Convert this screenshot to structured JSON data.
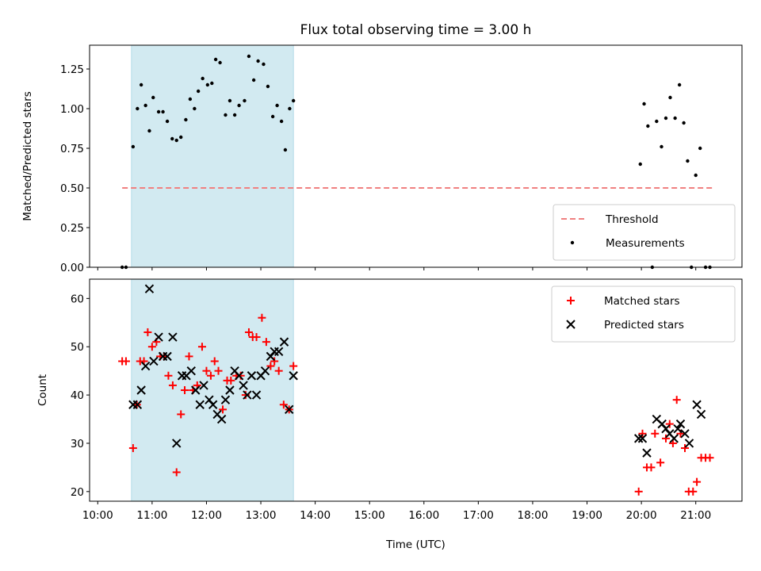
{
  "chart_data": {
    "title": "Flux total observing time = 3.00 h",
    "xlabel": "Time (UTC)",
    "x_unit": "hours UTC",
    "xlim": [
      9.85,
      21.85
    ],
    "x_ticks": [
      {
        "value": 10,
        "label": "10:00"
      },
      {
        "value": 11,
        "label": "11:00"
      },
      {
        "value": 12,
        "label": "12:00"
      },
      {
        "value": 13,
        "label": "13:00"
      },
      {
        "value": 14,
        "label": "14:00"
      },
      {
        "value": 15,
        "label": "15:00"
      },
      {
        "value": 16,
        "label": "16:00"
      },
      {
        "value": 17,
        "label": "17:00"
      },
      {
        "value": 18,
        "label": "18:00"
      },
      {
        "value": 19,
        "label": "19:00"
      },
      {
        "value": 20,
        "label": "20:00"
      },
      {
        "value": 21,
        "label": "21:00"
      }
    ],
    "shaded_span": {
      "x_start": 10.62,
      "x_end": 13.6,
      "color": "#add8e6"
    },
    "panels": [
      {
        "id": "ratio",
        "type": "scatter",
        "ylabel": "Matched/Predicted stars",
        "ylim": [
          0,
          1.4
        ],
        "y_ticks": [
          {
            "value": 0,
            "label": "0.00"
          },
          {
            "value": 0.25,
            "label": "0.25"
          },
          {
            "value": 0.5,
            "label": "0.50"
          },
          {
            "value": 0.75,
            "label": "0.75"
          },
          {
            "value": 1.0,
            "label": "1.00"
          },
          {
            "value": 1.25,
            "label": "1.25"
          }
        ],
        "legend_position": "lower-right",
        "threshold": {
          "name": "Threshold",
          "y": 0.5,
          "x_start": 10.45,
          "x_end": 21.3,
          "color": "#f08080"
        },
        "series": [
          {
            "name": "Measurements",
            "marker": "dot",
            "color": "#000000",
            "points": [
              [
                10.45,
                0.0
              ],
              [
                10.52,
                0.0
              ],
              [
                10.65,
                0.76
              ],
              [
                10.73,
                1.0
              ],
              [
                10.8,
                1.15
              ],
              [
                10.88,
                1.02
              ],
              [
                10.95,
                0.86
              ],
              [
                11.02,
                1.07
              ],
              [
                11.12,
                0.98
              ],
              [
                11.2,
                0.98
              ],
              [
                11.28,
                0.92
              ],
              [
                11.37,
                0.81
              ],
              [
                11.45,
                0.8
              ],
              [
                11.53,
                0.82
              ],
              [
                11.62,
                0.93
              ],
              [
                11.7,
                1.06
              ],
              [
                11.78,
                1.0
              ],
              [
                11.85,
                1.11
              ],
              [
                11.93,
                1.19
              ],
              [
                12.02,
                1.15
              ],
              [
                12.1,
                1.16
              ],
              [
                12.17,
                1.31
              ],
              [
                12.25,
                1.29
              ],
              [
                12.35,
                0.96
              ],
              [
                12.43,
                1.05
              ],
              [
                12.52,
                0.96
              ],
              [
                12.6,
                1.02
              ],
              [
                12.7,
                1.05
              ],
              [
                12.78,
                1.33
              ],
              [
                12.87,
                1.18
              ],
              [
                12.95,
                1.3
              ],
              [
                13.05,
                1.28
              ],
              [
                13.13,
                1.14
              ],
              [
                13.22,
                0.95
              ],
              [
                13.3,
                1.02
              ],
              [
                13.38,
                0.92
              ],
              [
                13.45,
                0.74
              ],
              [
                13.53,
                1.0
              ],
              [
                13.6,
                1.05
              ],
              [
                19.98,
                0.65
              ],
              [
                20.05,
                1.03
              ],
              [
                20.12,
                0.89
              ],
              [
                20.2,
                0.0
              ],
              [
                20.28,
                0.92
              ],
              [
                20.37,
                0.76
              ],
              [
                20.45,
                0.94
              ],
              [
                20.53,
                1.07
              ],
              [
                20.62,
                0.94
              ],
              [
                20.7,
                1.15
              ],
              [
                20.78,
                0.91
              ],
              [
                20.85,
                0.67
              ],
              [
                20.92,
                0.0
              ],
              [
                21.0,
                0.58
              ],
              [
                21.08,
                0.75
              ],
              [
                21.18,
                0.0
              ],
              [
                21.26,
                0.0
              ]
            ]
          }
        ]
      },
      {
        "id": "count",
        "type": "scatter",
        "ylabel": "Count",
        "ylim": [
          18,
          64
        ],
        "y_ticks": [
          {
            "value": 20,
            "label": "20"
          },
          {
            "value": 30,
            "label": "30"
          },
          {
            "value": 40,
            "label": "40"
          },
          {
            "value": 50,
            "label": "50"
          },
          {
            "value": 60,
            "label": "60"
          }
        ],
        "legend_position": "upper-right",
        "series": [
          {
            "name": "Matched stars",
            "marker": "plus",
            "color": "#ff0000",
            "points": [
              [
                10.45,
                47
              ],
              [
                10.52,
                47
              ],
              [
                10.65,
                29
              ],
              [
                10.72,
                38
              ],
              [
                10.78,
                47
              ],
              [
                10.85,
                47
              ],
              [
                10.92,
                53
              ],
              [
                11.0,
                50
              ],
              [
                11.08,
                51
              ],
              [
                11.15,
                48
              ],
              [
                11.22,
                48
              ],
              [
                11.3,
                44
              ],
              [
                11.38,
                42
              ],
              [
                11.45,
                24
              ],
              [
                11.53,
                36
              ],
              [
                11.6,
                41
              ],
              [
                11.68,
                48
              ],
              [
                11.75,
                41
              ],
              [
                11.83,
                42
              ],
              [
                11.92,
                50
              ],
              [
                12.0,
                45
              ],
              [
                12.08,
                44
              ],
              [
                12.15,
                47
              ],
              [
                12.22,
                45
              ],
              [
                12.3,
                37
              ],
              [
                12.38,
                43
              ],
              [
                12.45,
                43
              ],
              [
                12.55,
                44
              ],
              [
                12.63,
                44
              ],
              [
                12.72,
                40
              ],
              [
                12.78,
                53
              ],
              [
                12.85,
                52
              ],
              [
                12.92,
                52
              ],
              [
                13.02,
                56
              ],
              [
                13.1,
                51
              ],
              [
                13.18,
                46
              ],
              [
                13.25,
                47
              ],
              [
                13.33,
                45
              ],
              [
                13.42,
                38
              ],
              [
                13.52,
                37
              ],
              [
                13.6,
                46
              ],
              [
                19.95,
                20
              ],
              [
                20.02,
                32
              ],
              [
                20.1,
                25
              ],
              [
                20.18,
                25
              ],
              [
                20.25,
                32
              ],
              [
                20.35,
                26
              ],
              [
                20.45,
                31
              ],
              [
                20.52,
                34
              ],
              [
                20.58,
                30
              ],
              [
                20.65,
                39
              ],
              [
                20.72,
                32
              ],
              [
                20.8,
                29
              ],
              [
                20.87,
                20
              ],
              [
                20.95,
                20
              ],
              [
                21.02,
                22
              ],
              [
                21.1,
                27
              ],
              [
                21.18,
                27
              ],
              [
                21.26,
                27
              ]
            ]
          },
          {
            "name": "Predicted stars",
            "marker": "x",
            "color": "#000000",
            "points": [
              [
                10.65,
                38
              ],
              [
                10.73,
                38
              ],
              [
                10.8,
                41
              ],
              [
                10.88,
                46
              ],
              [
                10.95,
                62
              ],
              [
                11.03,
                47
              ],
              [
                11.12,
                52
              ],
              [
                11.2,
                48
              ],
              [
                11.28,
                48
              ],
              [
                11.38,
                52
              ],
              [
                11.45,
                30
              ],
              [
                11.55,
                44
              ],
              [
                11.63,
                44
              ],
              [
                11.72,
                45
              ],
              [
                11.8,
                41
              ],
              [
                11.88,
                38
              ],
              [
                11.95,
                42
              ],
              [
                12.05,
                39
              ],
              [
                12.12,
                38
              ],
              [
                12.2,
                36
              ],
              [
                12.28,
                35
              ],
              [
                12.35,
                39
              ],
              [
                12.43,
                41
              ],
              [
                12.52,
                45
              ],
              [
                12.6,
                44
              ],
              [
                12.68,
                42
              ],
              [
                12.75,
                40
              ],
              [
                12.83,
                44
              ],
              [
                12.92,
                40
              ],
              [
                13.0,
                44
              ],
              [
                13.08,
                45
              ],
              [
                13.18,
                48
              ],
              [
                13.25,
                49
              ],
              [
                13.33,
                49
              ],
              [
                13.43,
                51
              ],
              [
                13.52,
                37
              ],
              [
                13.6,
                44
              ],
              [
                19.95,
                31
              ],
              [
                20.02,
                31
              ],
              [
                20.1,
                28
              ],
              [
                20.28,
                35
              ],
              [
                20.38,
                34
              ],
              [
                20.45,
                33
              ],
              [
                20.52,
                32
              ],
              [
                20.6,
                31
              ],
              [
                20.67,
                33
              ],
              [
                20.72,
                34
              ],
              [
                20.8,
                32
              ],
              [
                20.88,
                30
              ],
              [
                21.02,
                38
              ],
              [
                21.1,
                36
              ]
            ]
          }
        ]
      }
    ]
  }
}
